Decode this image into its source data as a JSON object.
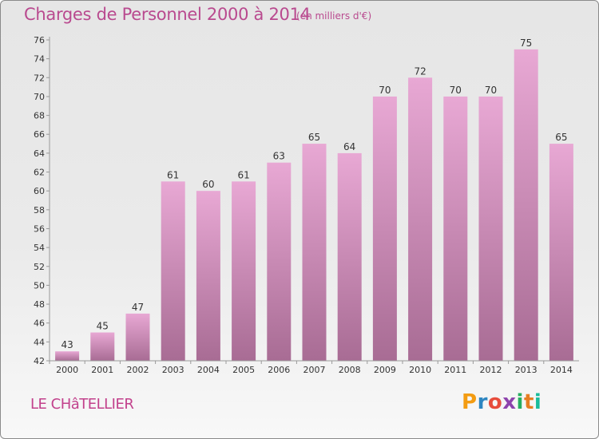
{
  "header": {
    "title": "Charges de Personnel 2000 à 2014",
    "subtitle": "(en milliers d'€)"
  },
  "footer": {
    "commune": "LE CHâTELLIER",
    "brand": "Proxiti",
    "brand_colors": [
      "#f39c12",
      "#2e86c1",
      "#e74c3c",
      "#8e44ad",
      "#27ae60",
      "#e67e22",
      "#1abc9c"
    ]
  },
  "colors": {
    "bar_light": "#e8a8d4",
    "bar_dark": "#a86c94",
    "accent": "#b94a8f",
    "axis": "#999999",
    "tick_text": "#333333"
  },
  "chart_data": {
    "type": "bar",
    "title": "Charges de Personnel 2000 à 2014",
    "subtitle": "(en milliers d'€)",
    "xlabel": "",
    "ylabel": "",
    "categories": [
      "2000",
      "2001",
      "2002",
      "2003",
      "2004",
      "2005",
      "2006",
      "2007",
      "2008",
      "2009",
      "2010",
      "2011",
      "2012",
      "2013",
      "2014"
    ],
    "values": [
      43,
      45,
      47,
      61,
      60,
      61,
      63,
      65,
      64,
      70,
      72,
      70,
      70,
      75,
      65
    ],
    "ylim": [
      42,
      76
    ],
    "ytick_step": 2,
    "grid": false,
    "data_labels": true
  }
}
